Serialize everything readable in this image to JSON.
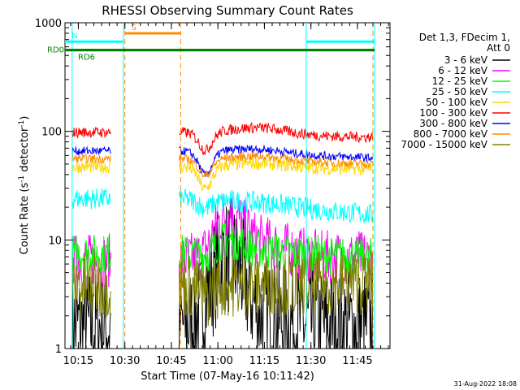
{
  "chart_data": {
    "type": "line",
    "title": "RHESSI Observing Summary Count Rates",
    "xlabel": "Start Time (07-May-16 10:11:42)",
    "ylabel_main": "Count Rate (s",
    "ylabel_sup1": "-1",
    "ylabel_mid": " detector",
    "ylabel_sup2": "-1",
    "ylabel_end": ")",
    "footer": "31-Aug-2022 18:08",
    "y_scale": "log",
    "ylim": [
      1,
      1000
    ],
    "xlim_minutes": [
      10.7,
      115.5
    ],
    "x_ticks": [
      {
        "label": "10:15",
        "m": 15
      },
      {
        "label": "10:30",
        "m": 30
      },
      {
        "label": "10:45",
        "m": 45
      },
      {
        "label": "11:00",
        "m": 60
      },
      {
        "label": "11:15",
        "m": 75
      },
      {
        "label": "11:30",
        "m": 90
      },
      {
        "label": "11:45",
        "m": 105
      }
    ],
    "y_ticks": [
      {
        "label": "1",
        "v": 1
      },
      {
        "label": "10",
        "v": 10
      },
      {
        "label": "100",
        "v": 100
      },
      {
        "label": "1000",
        "v": 1000
      }
    ],
    "legend_header": [
      "Det 1,3, FDecim 1,",
      "Att 0"
    ],
    "legend_position": "right",
    "series": [
      {
        "name": "3 - 6 keV",
        "color": "#000000",
        "a": 1.6,
        "b": 1.6,
        "dip": 1.0,
        "hump": 1.2,
        "flare": 4.0,
        "noise": 0.55
      },
      {
        "name": "6 - 12 keV",
        "color": "#ff00ff",
        "a": 6.5,
        "b": 7.0,
        "dip": 0.9,
        "hump": 1.4,
        "flare": 2.2,
        "noise": 0.25
      },
      {
        "name": "12 - 25 keV",
        "color": "#00ff00",
        "a": 7.5,
        "b": 7.0,
        "dip": 0.9,
        "hump": 1.1,
        "flare": 1.3,
        "noise": 0.18
      },
      {
        "name": "25 - 50 keV",
        "color": "#00ffff",
        "a": 24,
        "b": 17,
        "dip": 0.85,
        "hump": 1.05,
        "flare": 1.0,
        "noise": 0.1
      },
      {
        "name": "50 - 100 keV",
        "color": "#ffd700",
        "a": 47,
        "b": 45,
        "dip": 0.62,
        "hump": 1.1,
        "flare": 1.0,
        "noise": 0.06
      },
      {
        "name": "100 - 300 keV",
        "color": "#ff0000",
        "a": 98,
        "b": 88,
        "dip": 0.68,
        "hump": 1.15,
        "flare": 1.0,
        "noise": 0.05
      },
      {
        "name": "300 - 800 keV",
        "color": "#0000ff",
        "a": 66,
        "b": 57,
        "dip": 0.6,
        "hump": 1.1,
        "flare": 1.0,
        "noise": 0.04
      },
      {
        "name": "800 - 7000 keV",
        "color": "#ff8c00",
        "a": 56,
        "b": 50,
        "dip": 0.7,
        "hump": 1.1,
        "flare": 1.0,
        "noise": 0.04
      },
      {
        "name": "7000 - 15000 keV",
        "color": "#808000",
        "a": 3.8,
        "b": 4.0,
        "dip": 0.8,
        "hump": 1.0,
        "flare": 1.0,
        "noise": 0.3
      }
    ],
    "data_intervals_minutes": [
      [
        13,
        25.5
      ],
      [
        47.5,
        110
      ]
    ],
    "saa_or_night_lines_minutes": [
      {
        "m": 13,
        "color": "#00ffff"
      },
      {
        "m": 29.5,
        "color": "#00ffff"
      },
      {
        "m": 88.5,
        "color": "#00ffff"
      },
      {
        "m": 110.5,
        "color": "#00ffff"
      }
    ],
    "attenuator_lines_minutes": [
      {
        "m": 30,
        "color": "#ff8c00"
      },
      {
        "m": 48,
        "color": "#ff8c00"
      },
      {
        "m": 110,
        "color": "#ff8c00"
      }
    ],
    "flags": [
      {
        "label": "S",
        "color": "#ff8c00",
        "from": 30,
        "to": 48,
        "level": 800
      },
      {
        "label": "N",
        "color": "#00ffff",
        "from": 10.7,
        "to": 29.5,
        "level": 670
      },
      {
        "label": "",
        "color": "#00ffff",
        "from": 88.5,
        "to": 110.5,
        "level": 670
      },
      {
        "label": "RD0",
        "color": "#008000",
        "from": 10.7,
        "to": 110.5,
        "level": 560
      },
      {
        "label": "RD6",
        "color": "#008000",
        "from": 10.7,
        "to": 110.5,
        "level": 560
      }
    ]
  }
}
